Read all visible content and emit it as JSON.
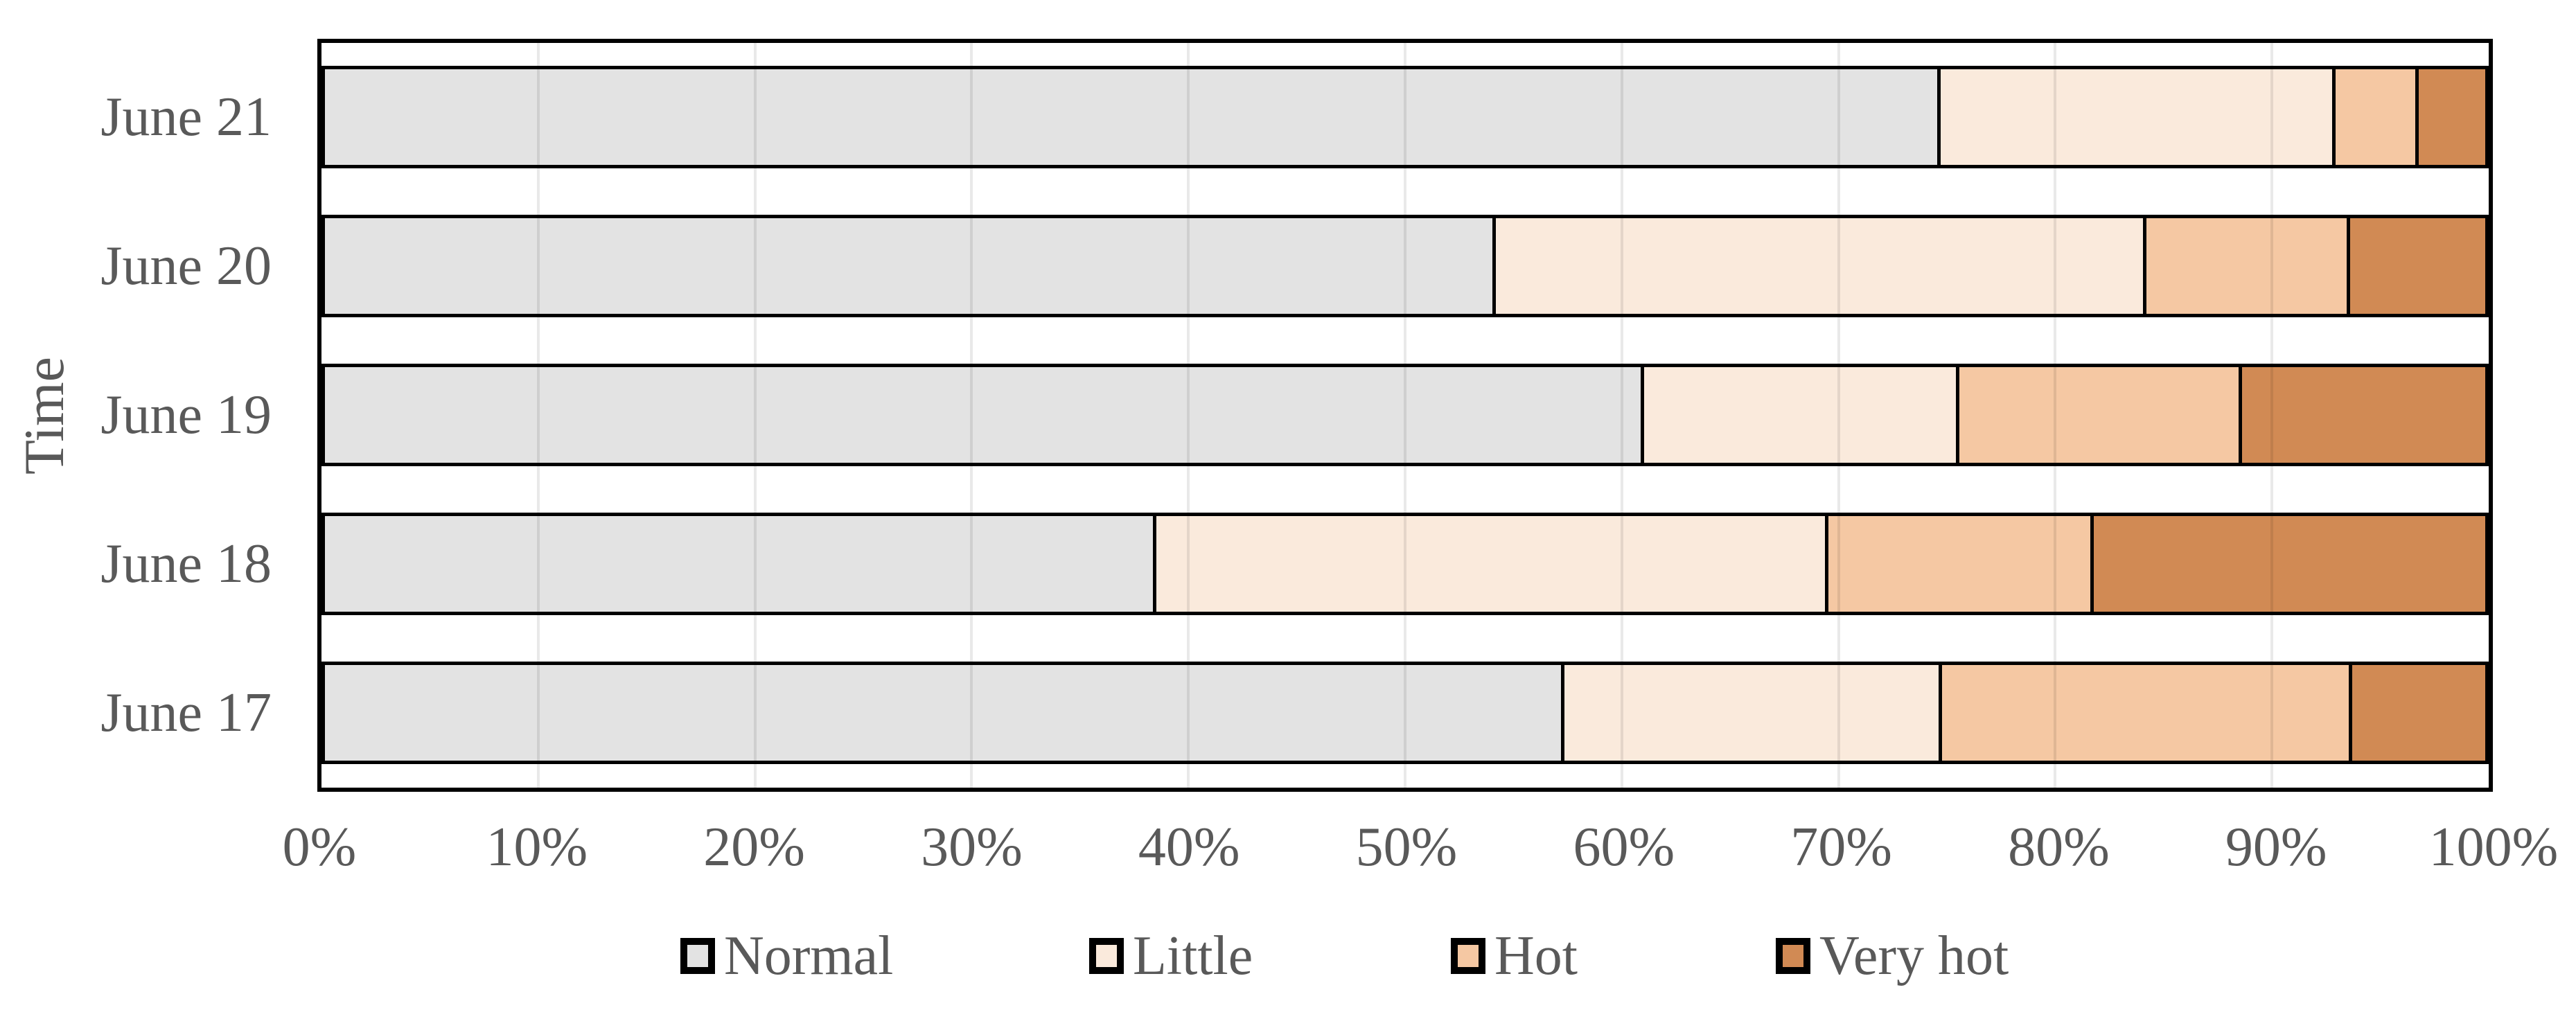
{
  "chart_data": {
    "type": "bar",
    "variant": "horizontal-stacked-100pct",
    "title": "",
    "xlabel": "",
    "ylabel": "Time",
    "categories_top_to_bottom": [
      "June 21",
      "June 20",
      "June 19",
      "June 18",
      "June 17"
    ],
    "series": [
      {
        "name": "Normal",
        "color": "#E3E3E3",
        "values": [
          75.0,
          54.3,
          61.2,
          38.5,
          57.5
        ]
      },
      {
        "name": "Little",
        "color": "#FAEADC",
        "values": [
          18.2,
          30.1,
          14.5,
          31.1,
          17.4
        ]
      },
      {
        "name": "Hot",
        "color": "#F5C8A3",
        "values": [
          3.7,
          9.3,
          13.0,
          12.2,
          18.9
        ]
      },
      {
        "name": "Very hot",
        "color": "#D18A54",
        "values": [
          3.1,
          6.3,
          11.3,
          18.2,
          6.2
        ]
      }
    ],
    "x_ticks": [
      "0%",
      "10%",
      "20%",
      "30%",
      "40%",
      "50%",
      "60%",
      "70%",
      "80%",
      "90%",
      "100%"
    ],
    "xlim": [
      0,
      100
    ],
    "grid": "vertical gridlines every 10%, drawn faintly over bars",
    "legend_position": "bottom",
    "bar_outline_color": "#000000",
    "plot_border_color": "#000000",
    "gridline_color": "#E9E9E9",
    "text_color": "#595959",
    "background_color": "#FFFFFF"
  },
  "layout_values": {
    "note_visible_text_only": true
  }
}
